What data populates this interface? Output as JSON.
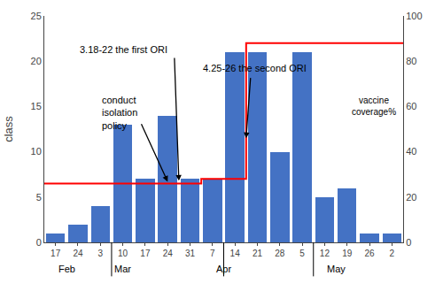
{
  "chart_data": {
    "type": "bar",
    "categories": [
      "17",
      "24",
      "3",
      "10",
      "17",
      "24",
      "31",
      "7",
      "14",
      "21",
      "28",
      "5",
      "12",
      "19",
      "26",
      "2"
    ],
    "ylabel": "class",
    "ylim": [
      0,
      25
    ],
    "yticks": [
      0,
      5,
      10,
      15,
      20,
      25
    ],
    "y2lim": [
      0,
      100
    ],
    "y2ticks": [
      0,
      20,
      40,
      60,
      80,
      100
    ],
    "grid": false,
    "series": [
      {
        "type": "bar",
        "color": "#4472C4",
        "values": [
          1,
          2,
          4,
          13,
          7,
          14,
          7,
          7,
          21,
          21,
          10,
          21,
          5,
          6,
          1,
          1
        ]
      },
      {
        "type": "line",
        "line_style": "step",
        "axis": "y2",
        "color": "red",
        "values": [
          26,
          26,
          26,
          26,
          26,
          26,
          26,
          28,
          28,
          88,
          88,
          88,
          88,
          88,
          88,
          88
        ]
      }
    ],
    "category_groups": [
      {
        "label": "Feb",
        "x": 0.5
      },
      {
        "label": "Mar",
        "x": 3.0
      },
      {
        "label": "Apr",
        "x": 7.5
      },
      {
        "label": "May",
        "x": 12.5
      }
    ],
    "group_separators": [
      2.5,
      7.5,
      11.5
    ],
    "annotations": [
      {
        "text": "3.18-22 the first ORI",
        "x": 1.0,
        "y": 20.5,
        "arrow_from": [
          5.3,
          20.5
        ],
        "arrow_to": [
          5.5,
          6.8
        ]
      },
      {
        "text": "conduct\nisolation\npolicy",
        "x": 2.0,
        "y": 16.5,
        "arrow_from": [
          3.8,
          13.2
        ],
        "arrow_to": [
          5.0,
          6.7
        ]
      },
      {
        "text": "4.25-26 the second ORI",
        "x": 6.5,
        "y": 18.5,
        "arrow_from": [
          8.7,
          18.3
        ],
        "arrow_to": [
          8.5,
          11.5
        ]
      },
      {
        "text": "vaccine\ncoverage%",
        "x": 14.2,
        "y": 15.0
      }
    ]
  }
}
